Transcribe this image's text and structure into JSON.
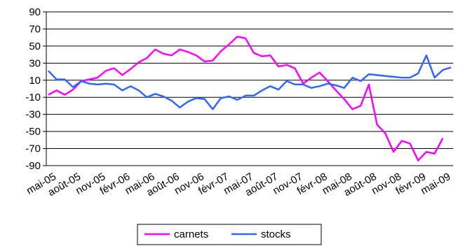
{
  "chart_data": {
    "type": "line",
    "title": "",
    "xlabel": "",
    "ylabel": "",
    "ylim": [
      -90,
      90
    ],
    "yticks": [
      90,
      70,
      50,
      30,
      10,
      -10,
      -30,
      -50,
      -70,
      -90
    ],
    "grid": "horizontal",
    "legend_position": "bottom",
    "x": [
      "mai-05",
      "juin-05",
      "juil-05",
      "août-05",
      "sept-05",
      "oct-05",
      "nov-05",
      "déc-05",
      "janv-06",
      "févr-06",
      "mars-06",
      "avr-06",
      "mai-06",
      "juin-06",
      "juil-06",
      "août-06",
      "sept-06",
      "oct-06",
      "nov-06",
      "déc-06",
      "janv-07",
      "févr-07",
      "mars-07",
      "avr-07",
      "mai-07",
      "juin-07",
      "juil-07",
      "août-07",
      "sept-07",
      "oct-07",
      "nov-07",
      "déc-07",
      "janv-08",
      "févr-08",
      "mars-08",
      "avr-08",
      "mai-08",
      "juin-08",
      "juil-08",
      "août-08",
      "sept-08",
      "oct-08",
      "nov-08",
      "déc-08",
      "janv-09",
      "févr-09",
      "mars-09",
      "avr-09",
      "mai-09",
      "juin-09"
    ],
    "x_tick_labels": [
      "mai-05",
      "août-05",
      "nov-05",
      "févr-06",
      "mai-06",
      "août-06",
      "nov-06",
      "févr-07",
      "mai-07",
      "août-07",
      "nov-07",
      "févr-08",
      "mai-08",
      "août-08",
      "nov-08",
      "févr-09",
      "mai-09"
    ],
    "series": [
      {
        "name": "carnets",
        "color": "#ff00ff",
        "values": [
          -7,
          -2,
          -7,
          -1,
          9,
          11,
          13,
          21,
          24,
          16,
          23,
          31,
          36,
          46,
          41,
          39,
          46,
          43,
          39,
          32,
          33,
          44,
          52,
          61,
          59,
          42,
          38,
          39,
          26,
          28,
          24,
          6,
          13,
          19,
          9,
          -2,
          -12,
          -24,
          -20,
          5,
          -42,
          -52,
          -74,
          -61,
          -64,
          -84,
          -74,
          -76,
          -58,
          null
        ]
      },
      {
        "name": "stocks",
        "color": "#3366ff",
        "values": [
          21,
          11,
          11,
          2,
          9,
          6,
          5,
          6,
          5,
          -2,
          3,
          -2,
          -10,
          -6,
          -9,
          -14,
          -22,
          -15,
          -11,
          -12,
          -24,
          -11,
          -9,
          -13,
          -8,
          -8,
          -2,
          3,
          -1,
          9,
          5,
          5,
          1,
          3,
          6,
          4,
          1,
          13,
          9,
          17,
          16,
          15,
          14,
          13,
          13,
          18,
          39,
          13,
          22,
          25
        ]
      }
    ]
  }
}
